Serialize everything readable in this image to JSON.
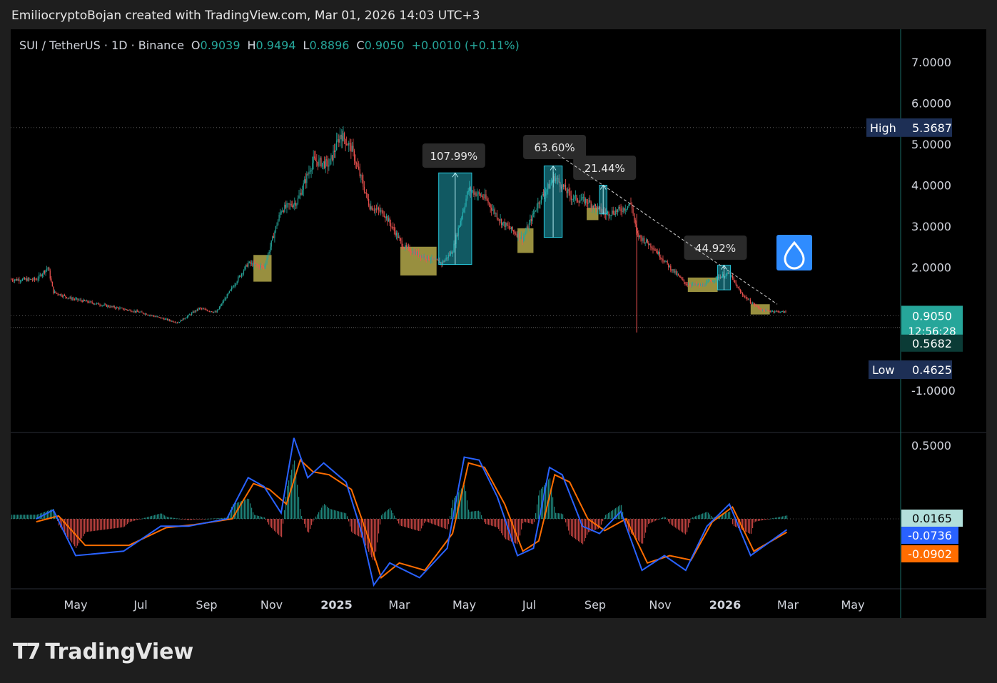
{
  "header": {
    "attribution": "EmiliocryptoBojan created with TradingView.com, Mar 01, 2026 14:03 UTC+3"
  },
  "footer": {
    "brand": "TradingView",
    "logo_icon": "tradingview-logo-icon"
  },
  "legend": {
    "symbol": "SUI / TetherUS · 1D · Binance",
    "o_label": "O",
    "o_value": "0.9039",
    "h_label": "H",
    "h_value": "0.9494",
    "l_label": "L",
    "l_value": "0.8896",
    "c_label": "C",
    "c_value": "0.9050",
    "change": "+0.0010 (+0.11%)"
  },
  "chart_data": [
    {
      "type": "line",
      "subtype": "candlestick",
      "x_tick_labels": [
        "May",
        "Jul",
        "Sep",
        "Nov",
        "2025",
        "Mar",
        "May",
        "Jul",
        "Sep",
        "Nov",
        "2026",
        "Mar",
        "May"
      ],
      "y_tick_labels": [
        "7.0000",
        "6.0000",
        "5.0000",
        "4.0000",
        "3.0000",
        "2.0000",
        "-1.0000"
      ],
      "ylim": [
        -1.4,
        7.8
      ],
      "price_path": [
        [
          "2024-03-25",
          1.7
        ],
        [
          "2024-04-05",
          2.0
        ],
        [
          "2024-04-10",
          1.4
        ],
        [
          "2024-04-25",
          1.25
        ],
        [
          "2024-06-01",
          1.05
        ],
        [
          "2024-07-01",
          0.9
        ],
        [
          "2024-08-05",
          0.65
        ],
        [
          "2024-08-25",
          1.0
        ],
        [
          "2024-09-10",
          0.9
        ],
        [
          "2024-09-25",
          1.5
        ],
        [
          "2024-10-10",
          2.1
        ],
        [
          "2024-10-25",
          2.0
        ],
        [
          "2024-11-10",
          3.4
        ],
        [
          "2024-11-25",
          3.6
        ],
        [
          "2024-12-10",
          4.6
        ],
        [
          "2024-12-25",
          4.5
        ],
        [
          "2025-01-05",
          5.25
        ],
        [
          "2025-01-15",
          4.9
        ],
        [
          "2025-02-01",
          3.5
        ],
        [
          "2025-02-15",
          3.3
        ],
        [
          "2025-03-05",
          2.5
        ],
        [
          "2025-03-20",
          2.3
        ],
        [
          "2025-04-10",
          2.1
        ],
        [
          "2025-04-20",
          2.4
        ],
        [
          "2025-05-05",
          3.9
        ],
        [
          "2025-05-20",
          3.7
        ],
        [
          "2025-06-05",
          3.1
        ],
        [
          "2025-06-25",
          2.7
        ],
        [
          "2025-07-10",
          3.6
        ],
        [
          "2025-07-25",
          4.2
        ],
        [
          "2025-08-10",
          3.7
        ],
        [
          "2025-08-25",
          3.6
        ],
        [
          "2025-09-10",
          3.3
        ],
        [
          "2025-09-25",
          3.4
        ],
        [
          "2025-10-05",
          3.55
        ],
        [
          "2025-10-10",
          2.8
        ],
        [
          "2025-10-25",
          2.5
        ],
        [
          "2025-11-10",
          2.0
        ],
        [
          "2025-11-25",
          1.6
        ],
        [
          "2025-12-10",
          1.55
        ],
        [
          "2025-12-25",
          1.75
        ],
        [
          "2026-01-05",
          1.85
        ],
        [
          "2026-01-15",
          1.4
        ],
        [
          "2026-01-25",
          1.15
        ],
        [
          "2026-02-05",
          0.95
        ],
        [
          "2026-02-28",
          0.905
        ]
      ],
      "high_label": "High",
      "high_value": "5.3687",
      "low_label": "Low",
      "low_value": "0.4625",
      "last_price": "0.9050",
      "countdown": "12:56:28",
      "ref_price": "0.5682",
      "annotations": [
        {
          "text": "107.99%",
          "from": "2025-04-07",
          "to": "2025-05-08",
          "low": 2.07,
          "high": 4.3,
          "kind": "range_up"
        },
        {
          "text": "63.60%",
          "from": "2025-07-15",
          "to": "2025-08-01",
          "low": 2.73,
          "high": 4.47,
          "kind": "range_up"
        },
        {
          "text": "21.44%",
          "from": "2025-09-05",
          "to": "2025-09-12",
          "low": 3.3,
          "high": 4.0,
          "kind": "range_up"
        },
        {
          "text": "44.92%",
          "from": "2025-12-25",
          "to": "2026-01-06",
          "low": 1.45,
          "high": 2.05,
          "kind": "range_up"
        }
      ],
      "zones": [
        {
          "from": "2024-10-15",
          "to": "2024-11-01",
          "low": 1.65,
          "high": 2.3
        },
        {
          "from": "2025-03-02",
          "to": "2025-04-05",
          "low": 1.8,
          "high": 2.5
        },
        {
          "from": "2025-06-20",
          "to": "2025-07-05",
          "low": 2.35,
          "high": 2.95
        },
        {
          "from": "2025-08-24",
          "to": "2025-09-04",
          "low": 3.15,
          "high": 3.45
        },
        {
          "from": "2025-11-27",
          "to": "2025-12-25",
          "low": 1.4,
          "high": 1.75
        },
        {
          "from": "2026-01-25",
          "to": "2026-02-12",
          "low": 0.85,
          "high": 1.1
        }
      ],
      "trendline": [
        [
          "2025-07-28",
          4.75
        ],
        [
          "2026-02-19",
          1.1
        ]
      ],
      "colors": {
        "up": "#26a69a",
        "down": "#ef5350",
        "zone": "#b3a84a",
        "range": "#26c6da",
        "high_box": "#1d2f55",
        "last": "#26a69a"
      }
    },
    {
      "type": "line",
      "subtype": "macd",
      "y_tick_labels": [
        "0.5000"
      ],
      "ylim": [
        -0.55,
        0.58
      ],
      "hist_value": "0.0165",
      "macd_value": "-0.0736",
      "signal_value": "-0.0902",
      "macd_path": [
        [
          "2024-03-25",
          0.0
        ],
        [
          "2024-04-10",
          0.06
        ],
        [
          "2024-05-01",
          -0.25
        ],
        [
          "2024-06-15",
          -0.22
        ],
        [
          "2024-07-20",
          -0.05
        ],
        [
          "2024-08-15",
          -0.05
        ],
        [
          "2024-09-20",
          0.0
        ],
        [
          "2024-10-10",
          0.28
        ],
        [
          "2024-10-25",
          0.22
        ],
        [
          "2024-11-10",
          0.04
        ],
        [
          "2024-11-22",
          0.55
        ],
        [
          "2024-12-05",
          0.28
        ],
        [
          "2024-12-20",
          0.38
        ],
        [
          "2025-01-10",
          0.25
        ],
        [
          "2025-01-25",
          -0.1
        ],
        [
          "2025-02-05",
          -0.45
        ],
        [
          "2025-02-20",
          -0.3
        ],
        [
          "2025-03-20",
          -0.4
        ],
        [
          "2025-04-15",
          -0.2
        ],
        [
          "2025-05-01",
          0.42
        ],
        [
          "2025-05-15",
          0.4
        ],
        [
          "2025-06-01",
          0.15
        ],
        [
          "2025-06-20",
          -0.25
        ],
        [
          "2025-07-05",
          -0.2
        ],
        [
          "2025-07-20",
          0.35
        ],
        [
          "2025-08-01",
          0.3
        ],
        [
          "2025-08-20",
          -0.05
        ],
        [
          "2025-09-05",
          -0.1
        ],
        [
          "2025-09-25",
          0.05
        ],
        [
          "2025-10-15",
          -0.35
        ],
        [
          "2025-11-05",
          -0.25
        ],
        [
          "2025-11-25",
          -0.35
        ],
        [
          "2025-12-15",
          -0.05
        ],
        [
          "2026-01-05",
          0.1
        ],
        [
          "2026-01-25",
          -0.25
        ],
        [
          "2026-02-28",
          -0.0736
        ]
      ],
      "signal_path": [
        [
          "2024-03-25",
          -0.02
        ],
        [
          "2024-04-15",
          0.02
        ],
        [
          "2024-05-10",
          -0.18
        ],
        [
          "2024-06-20",
          -0.18
        ],
        [
          "2024-07-25",
          -0.06
        ],
        [
          "2024-08-20",
          -0.04
        ],
        [
          "2024-09-25",
          0.0
        ],
        [
          "2024-10-15",
          0.24
        ],
        [
          "2024-10-30",
          0.2
        ],
        [
          "2024-11-15",
          0.1
        ],
        [
          "2024-11-28",
          0.4
        ],
        [
          "2024-12-10",
          0.32
        ],
        [
          "2024-12-25",
          0.3
        ],
        [
          "2025-01-15",
          0.2
        ],
        [
          "2025-02-01",
          -0.15
        ],
        [
          "2025-02-12",
          -0.4
        ],
        [
          "2025-03-01",
          -0.3
        ],
        [
          "2025-03-25",
          -0.35
        ],
        [
          "2025-04-20",
          -0.1
        ],
        [
          "2025-05-05",
          0.38
        ],
        [
          "2025-05-20",
          0.35
        ],
        [
          "2025-06-08",
          0.1
        ],
        [
          "2025-06-25",
          -0.22
        ],
        [
          "2025-07-10",
          -0.15
        ],
        [
          "2025-07-25",
          0.3
        ],
        [
          "2025-08-08",
          0.25
        ],
        [
          "2025-08-25",
          0.0
        ],
        [
          "2025-09-10",
          -0.08
        ],
        [
          "2025-09-30",
          0.0
        ],
        [
          "2025-10-20",
          -0.3
        ],
        [
          "2025-11-10",
          -0.25
        ],
        [
          "2025-11-30",
          -0.28
        ],
        [
          "2025-12-20",
          -0.02
        ],
        [
          "2026-01-08",
          0.08
        ],
        [
          "2026-01-28",
          -0.22
        ],
        [
          "2026-02-28",
          -0.0902
        ]
      ],
      "colors": {
        "macd": "#2962ff",
        "signal": "#ff6d00",
        "hist_up": "#26a69a",
        "hist_down": "#ef5350"
      }
    }
  ]
}
